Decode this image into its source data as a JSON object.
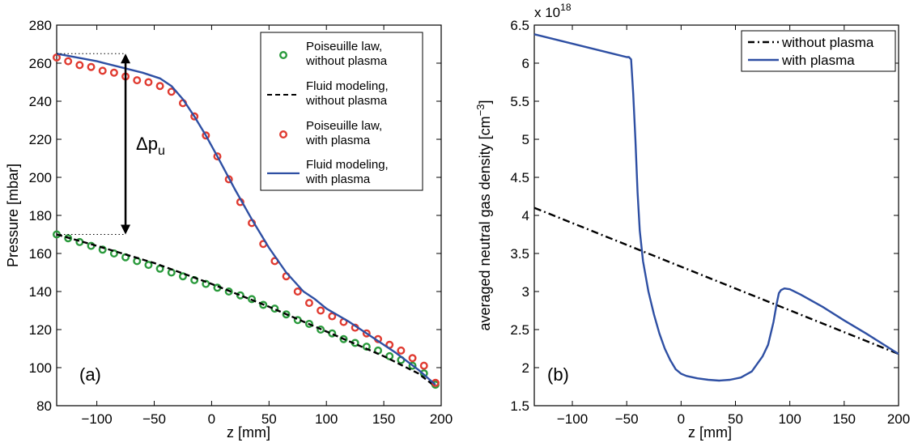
{
  "chart_data": [
    {
      "type": "scatter",
      "panel_label": "(a)",
      "xlabel": "z [mm]",
      "ylabel": "Pressure [mbar]",
      "xlim": [
        -135,
        200
      ],
      "ylim": [
        80,
        280
      ],
      "xticks": [
        -100,
        -50,
        0,
        50,
        100,
        150,
        200
      ],
      "yticks": [
        80,
        100,
        120,
        140,
        160,
        180,
        200,
        220,
        240,
        260,
        280
      ],
      "grid": false,
      "legend_position": "top-right",
      "annotation": {
        "text": "Δp",
        "subscript": "u",
        "arrow_x": -75,
        "y_from": 170,
        "y_to": 265
      },
      "series": [
        {
          "name": "Poiseuille law, without plasma",
          "legend_lines": [
            "Poiseuille law,",
            "without plasma"
          ],
          "style": "markers",
          "color": "#2a9a3c",
          "x": [
            -135,
            -125,
            -115,
            -105,
            -95,
            -85,
            -75,
            -65,
            -55,
            -45,
            -35,
            -25,
            -15,
            -5,
            5,
            15,
            25,
            35,
            45,
            55,
            65,
            75,
            85,
            95,
            105,
            115,
            125,
            135,
            145,
            155,
            165,
            175,
            185,
            195
          ],
          "y": [
            170,
            168,
            166,
            164,
            162,
            160,
            158,
            156,
            154,
            152,
            150,
            148,
            146,
            144,
            142,
            140,
            138,
            136,
            133,
            131,
            128,
            125,
            123,
            120,
            118,
            115,
            113,
            111,
            109,
            106,
            104,
            101,
            97,
            91
          ]
        },
        {
          "name": "Fluid modeling, without plasma",
          "legend_lines": [
            "Fluid modeling,",
            "without plasma"
          ],
          "style": "dashed",
          "color": "#000000",
          "x": [
            -135,
            -100,
            -50,
            0,
            50,
            100,
            150,
            180,
            195
          ],
          "y": [
            170,
            164,
            155,
            144,
            132,
            119,
            106,
            97,
            90
          ]
        },
        {
          "name": "Poiseuille law, with plasma",
          "legend_lines": [
            "Poiseuille law,",
            "with plasma"
          ],
          "style": "markers",
          "color": "#e03a30",
          "x": [
            -135,
            -125,
            -115,
            -105,
            -95,
            -85,
            -75,
            -65,
            -55,
            -45,
            -35,
            -25,
            -15,
            -5,
            5,
            15,
            25,
            35,
            45,
            55,
            65,
            75,
            85,
            95,
            105,
            115,
            125,
            135,
            145,
            155,
            165,
            175,
            185,
            195
          ],
          "y": [
            263,
            261,
            259,
            258,
            256,
            255,
            253,
            251,
            250,
            248,
            245,
            239,
            232,
            222,
            211,
            199,
            187,
            176,
            165,
            156,
            148,
            140,
            134,
            130,
            127,
            124,
            121,
            118,
            115,
            112,
            109,
            105,
            101,
            92
          ]
        },
        {
          "name": "Fluid modeling, with plasma",
          "legend_lines": [
            "Fluid modeling,",
            "with plasma"
          ],
          "style": "solid",
          "color": "#2e4fa3",
          "x": [
            -135,
            -100,
            -60,
            -45,
            -35,
            -25,
            -15,
            -5,
            5,
            20,
            35,
            50,
            65,
            80,
            90,
            100,
            120,
            140,
            160,
            180,
            195
          ],
          "y": [
            265,
            261,
            255,
            252,
            248,
            241,
            232,
            222,
            211,
            194,
            178,
            163,
            150,
            140,
            136,
            131,
            124,
            116,
            108,
            99,
            91
          ]
        }
      ]
    },
    {
      "type": "line",
      "panel_label": "(b)",
      "xlabel": "z [mm]",
      "ylabel": "averaged neutral gas density [cm",
      "ylabel_sup": "−3",
      "ylabel_end": "]",
      "exponent_label": "x 10",
      "exponent_power": "18",
      "xlim": [
        -135,
        200
      ],
      "ylim": [
        1.5,
        6.5
      ],
      "xticks": [
        -100,
        -50,
        0,
        50,
        100,
        150,
        200
      ],
      "yticks": [
        1.5,
        2,
        2.5,
        3,
        3.5,
        4,
        4.5,
        5,
        5.5,
        6,
        6.5
      ],
      "grid": false,
      "legend_position": "top-right",
      "series": [
        {
          "name": "without plasma",
          "style": "dashdot",
          "color": "#000000",
          "x": [
            -135,
            200
          ],
          "y": [
            4.1,
            2.18
          ]
        },
        {
          "name": "with plasma",
          "style": "solid",
          "color": "#2e4fa3",
          "x": [
            -135,
            -50,
            -48,
            -46,
            -44,
            -42,
            -40,
            -38,
            -35,
            -30,
            -25,
            -20,
            -15,
            -10,
            -5,
            0,
            5,
            15,
            25,
            35,
            45,
            55,
            65,
            75,
            80,
            85,
            88,
            90,
            92,
            95,
            100,
            110,
            130,
            150,
            170,
            190,
            200
          ],
          "y": [
            6.38,
            6.08,
            6.08,
            6.05,
            5.6,
            5.0,
            4.3,
            3.8,
            3.4,
            3.0,
            2.7,
            2.45,
            2.25,
            2.1,
            1.98,
            1.92,
            1.89,
            1.86,
            1.84,
            1.83,
            1.84,
            1.87,
            1.95,
            2.15,
            2.3,
            2.6,
            2.85,
            2.98,
            3.02,
            3.04,
            3.03,
            2.96,
            2.8,
            2.62,
            2.45,
            2.27,
            2.18
          ]
        }
      ]
    }
  ]
}
